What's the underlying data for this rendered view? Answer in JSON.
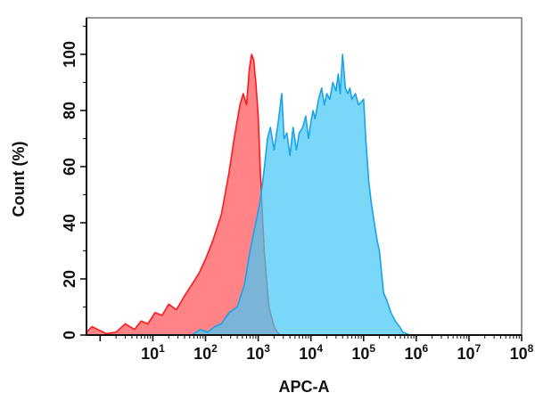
{
  "chart_data": {
    "type": "area",
    "title": "",
    "xlabel": "APC-A",
    "ylabel": "Count (%)",
    "xscale": "log10",
    "xlim": [
      0.55,
      100000000
    ],
    "ylim": [
      0,
      113
    ],
    "grid": false,
    "legend": "none",
    "x_ticks": [
      {
        "base": "10",
        "exp": "1"
      },
      {
        "base": "10",
        "exp": "2"
      },
      {
        "base": "10",
        "exp": "3"
      },
      {
        "base": "10",
        "exp": "4"
      },
      {
        "base": "10",
        "exp": "5"
      },
      {
        "base": "10",
        "exp": "6"
      },
      {
        "base": "10",
        "exp": "7"
      },
      {
        "base": "10",
        "exp": "8"
      }
    ],
    "y_ticks": [
      0,
      20,
      40,
      60,
      80,
      100
    ],
    "series": [
      {
        "color": "#ff5a5f",
        "stroke": "#ff1a1a",
        "x": [
          0.55,
          0.7,
          0.9,
          1.3,
          2.0,
          3.0,
          4.5,
          6.0,
          8.0,
          11,
          15,
          20,
          28,
          40,
          55,
          75,
          100,
          140,
          200,
          280,
          350,
          450,
          520,
          600,
          680,
          750,
          820,
          900,
          1000,
          1100,
          1300,
          1600,
          2000,
          2300,
          2600
        ],
        "y": [
          1,
          3,
          2,
          0.5,
          1,
          4,
          2,
          5,
          4,
          8,
          7,
          11,
          9,
          14,
          18,
          22,
          27,
          34,
          43,
          58,
          70,
          82,
          86,
          82,
          95,
          100,
          98,
          90,
          78,
          58,
          30,
          10,
          3,
          1,
          0
        ]
      },
      {
        "color": "#47c8f5",
        "stroke": "#1aa3e8",
        "x": [
          55,
          80,
          110,
          150,
          200,
          280,
          400,
          550,
          700,
          900,
          1100,
          1300,
          1500,
          1700,
          2000,
          2400,
          2800,
          3100,
          3500,
          4000,
          4600,
          5300,
          6000,
          7000,
          8000,
          9000,
          10000,
          11000,
          12000,
          14000,
          16000,
          18000,
          20000,
          23000,
          26000,
          30000,
          33000,
          36000,
          40000,
          45000,
          50000,
          55000,
          60000,
          70000,
          80000,
          90000,
          100000,
          110000,
          125000,
          140000,
          160000,
          180000,
          200000,
          240000,
          280000,
          330000,
          400000,
          480000,
          560000,
          650000,
          750000
        ],
        "y": [
          0,
          2,
          1,
          3,
          4,
          8,
          10,
          18,
          30,
          40,
          48,
          59,
          70,
          74,
          66,
          76,
          86,
          70,
          72,
          64,
          74,
          66,
          72,
          74,
          78,
          70,
          76,
          80,
          77,
          84,
          88,
          82,
          86,
          84,
          90,
          87,
          93,
          86,
          100,
          88,
          86,
          88,
          84,
          86,
          82,
          83,
          84,
          70,
          55,
          47,
          40,
          34,
          30,
          15,
          12,
          8,
          5,
          3,
          1,
          0.5,
          0
        ]
      }
    ]
  }
}
